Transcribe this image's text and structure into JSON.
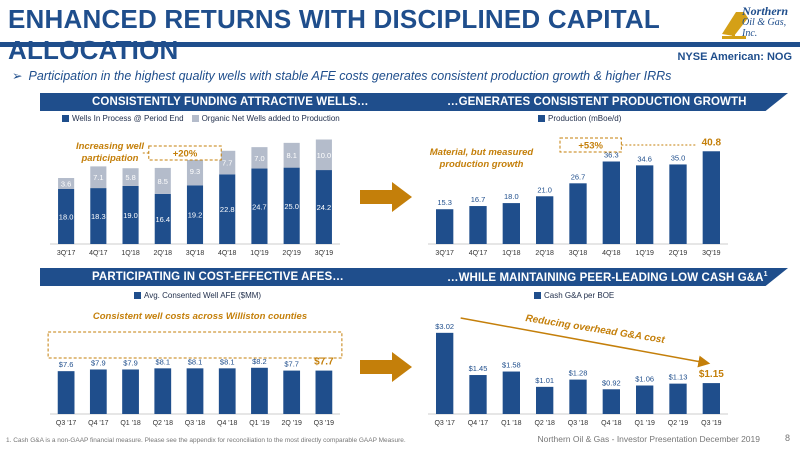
{
  "header": {
    "title": "ENHANCED RETURNS WITH DISCIPLINED CAPITAL ALLOCATION",
    "logo_line1": "Northern",
    "logo_line2": "Oil & Gas, Inc.",
    "exchange": "NYSE American: NOG"
  },
  "bullet": "Participation in the highest quality wells with stable AFE costs generates consistent production growth & higher IRRs",
  "bands": {
    "top_left": "CONSISTENTLY FUNDING ATTRACTIVE WELLS…",
    "top_right": "…GENERATES CONSISTENT PRODUCTION GROWTH",
    "bottom_left": "PARTICIPATING IN COST-EFFECTIVE AFES…",
    "bottom_right": "…WHILE MAINTAINING PEER-LEADING LOW CASH G&A",
    "bottom_right_sup": "1"
  },
  "notes": {
    "wells": "Increasing well participation",
    "wells_growth": "+20%",
    "production": "Material, but measured production growth",
    "production_growth": "+53%",
    "afe": "Consistent well costs across Williston counties",
    "ga": "Reducing overhead G&A cost"
  },
  "colors": {
    "navy": "#1f4e8c",
    "light": "#b4bccb",
    "gold": "#c47f0a"
  },
  "chart_data": [
    {
      "type": "bar",
      "stacked": true,
      "categories": [
        "3Q'17",
        "4Q'17",
        "1Q'18",
        "2Q'18",
        "3Q'18",
        "4Q'18",
        "1Q'19",
        "2Q'19",
        "3Q'19"
      ],
      "series": [
        {
          "name": "Wells In Process @ Period End",
          "values": [
            18.0,
            18.3,
            19.0,
            16.4,
            19.2,
            22.8,
            24.7,
            25.0,
            24.2
          ],
          "labels": [
            "18.0",
            "18.3",
            "19.0",
            "16.4",
            "19.2",
            "22.8",
            "24.7",
            "25.0",
            "24.2"
          ]
        },
        {
          "name": "Organic Net Wells added to Production",
          "values": [
            3.6,
            7.1,
            5.8,
            8.5,
            9.3,
            7.7,
            7.0,
            8.1,
            10.0
          ],
          "labels": [
            "3.6",
            "7.1",
            "5.8",
            "8.5",
            "9.3",
            "7.7",
            "7.0",
            "8.1",
            "10.0"
          ]
        }
      ]
    },
    {
      "type": "bar",
      "categories": [
        "3Q'17",
        "4Q'17",
        "1Q'18",
        "2Q'18",
        "3Q'18",
        "4Q'18",
        "1Q'19",
        "2Q'19",
        "3Q'19"
      ],
      "series": [
        {
          "name": "Production (mBoe/d)",
          "values": [
            15.3,
            16.7,
            18.0,
            21.0,
            26.7,
            36.3,
            34.6,
            35.0,
            40.8
          ],
          "labels": [
            "15.3",
            "16.7",
            "18.0",
            "21.0",
            "26.7",
            "36.3",
            "34.6",
            "35.0",
            "40.8"
          ]
        }
      ]
    },
    {
      "type": "bar",
      "categories": [
        "Q3 '17",
        "Q4 '17",
        "Q1 '18",
        "Q2 '18",
        "Q3 '18",
        "Q4 '18",
        "Q1 '19",
        "2Q '19",
        "Q3 '19"
      ],
      "series": [
        {
          "name": "Avg. Consented Well AFE ($MM)",
          "values": [
            7.6,
            7.9,
            7.9,
            8.1,
            8.1,
            8.1,
            8.2,
            7.7,
            7.7
          ],
          "labels": [
            "$7.6",
            "$7.9",
            "$7.9",
            "$8.1",
            "$8.1",
            "$8.1",
            "$8.2",
            "$7.7",
            "$7.7"
          ]
        }
      ]
    },
    {
      "type": "bar",
      "categories": [
        "Q3 '17",
        "Q4 '17",
        "Q1 '18",
        "Q2 '18",
        "Q3 '18",
        "Q4 '18",
        "Q1 '19",
        "Q2 '19",
        "Q3 '19"
      ],
      "series": [
        {
          "name": "Cash G&A per BOE",
          "values": [
            3.02,
            1.45,
            1.58,
            1.01,
            1.28,
            0.92,
            1.06,
            1.13,
            1.15
          ],
          "labels": [
            "$3.02",
            "$1.45",
            "$1.58",
            "$1.01",
            "$1.28",
            "$0.92",
            "$1.06",
            "$1.13",
            "$1.15"
          ]
        }
      ]
    }
  ],
  "footnote": "1. Cash G&A is a non-GAAP financial measure. Please see the appendix for reconciliation to the most directly comparable GAAP Measure.",
  "footer": "Northern Oil & Gas - Investor Presentation December 2019",
  "page_number": "8"
}
